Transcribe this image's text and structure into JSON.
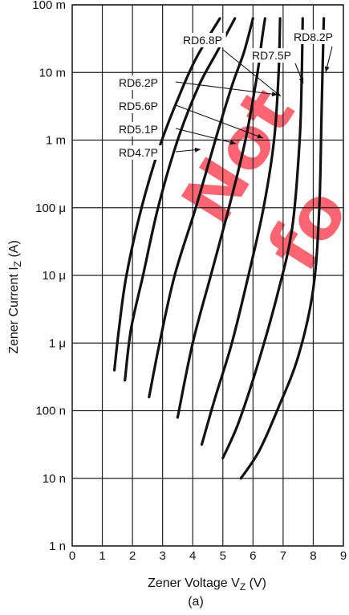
{
  "chart_data": {
    "type": "line",
    "xlabel": "Zener Voltage V",
    "xlabel_sub": "Z",
    "xlabel_unit": " (V)",
    "ylabel": "Zener Current I",
    "ylabel_sub": "Z",
    "ylabel_unit": " (A)",
    "caption": "(a)",
    "watermark": [
      "Not",
      "fo"
    ],
    "x_ticks": [
      "0",
      "1",
      "2",
      "3",
      "4",
      "5",
      "6",
      "7",
      "8",
      "9"
    ],
    "xlim": [
      0,
      9
    ],
    "y_scale": "log",
    "ylim_decades": [
      -9,
      -1
    ],
    "y_ticks": [
      "1 n",
      "10 n",
      "100 n",
      "1 μ",
      "10 μ",
      "100 μ",
      "1 m",
      "10 m",
      "100 m"
    ],
    "grid": true,
    "series": [
      {
        "name": "RD4.7P",
        "points": [
          [
            1.4,
            -6.4
          ],
          [
            1.55,
            -5.8
          ],
          [
            1.8,
            -5.0
          ],
          [
            2.3,
            -4.0
          ],
          [
            2.9,
            -3.1
          ],
          [
            3.5,
            -2.4
          ],
          [
            4.1,
            -1.8
          ],
          [
            4.9,
            -1.2
          ]
        ]
      },
      {
        "name": "RD5.1P",
        "points": [
          [
            1.75,
            -6.55
          ],
          [
            1.95,
            -5.8
          ],
          [
            2.35,
            -5.0
          ],
          [
            2.85,
            -4.0
          ],
          [
            3.5,
            -3.0
          ],
          [
            4.2,
            -2.2
          ],
          [
            4.8,
            -1.7
          ],
          [
            5.4,
            -1.2
          ]
        ]
      },
      {
        "name": "RD5.6P",
        "points": [
          [
            2.55,
            -6.8
          ],
          [
            2.9,
            -6.0
          ],
          [
            3.4,
            -5.0
          ],
          [
            4.1,
            -4.0
          ],
          [
            4.75,
            -3.0
          ],
          [
            5.3,
            -2.2
          ],
          [
            5.7,
            -1.7
          ],
          [
            6.0,
            -1.2
          ]
        ]
      },
      {
        "name": "RD6.2P",
        "points": [
          [
            3.5,
            -7.1
          ],
          [
            4.0,
            -6.0
          ],
          [
            4.6,
            -5.0
          ],
          [
            5.2,
            -4.0
          ],
          [
            5.75,
            -3.0
          ],
          [
            6.15,
            -2.0
          ],
          [
            6.3,
            -1.5
          ],
          [
            6.4,
            -1.2
          ]
        ]
      },
      {
        "name": "RD6.8P",
        "points": [
          [
            4.3,
            -7.5
          ],
          [
            4.75,
            -6.8
          ],
          [
            5.3,
            -6.0
          ],
          [
            5.85,
            -5.0
          ],
          [
            6.35,
            -4.0
          ],
          [
            6.7,
            -3.0
          ],
          [
            6.85,
            -2.0
          ],
          [
            6.9,
            -1.2
          ]
        ]
      },
      {
        "name": "RD7.5P",
        "points": [
          [
            5.0,
            -7.7
          ],
          [
            5.5,
            -7.2
          ],
          [
            6.1,
            -6.4
          ],
          [
            6.8,
            -5.3
          ],
          [
            7.3,
            -4.3
          ],
          [
            7.55,
            -3.0
          ],
          [
            7.62,
            -2.0
          ],
          [
            7.65,
            -1.2
          ]
        ]
      },
      {
        "name": "RD8.2P",
        "points": [
          [
            5.6,
            -8.0
          ],
          [
            6.2,
            -7.6
          ],
          [
            6.8,
            -7.0
          ],
          [
            7.5,
            -6.2
          ],
          [
            8.0,
            -5.2
          ],
          [
            8.2,
            -4.0
          ],
          [
            8.28,
            -2.5
          ],
          [
            8.35,
            -1.2
          ]
        ]
      }
    ]
  }
}
